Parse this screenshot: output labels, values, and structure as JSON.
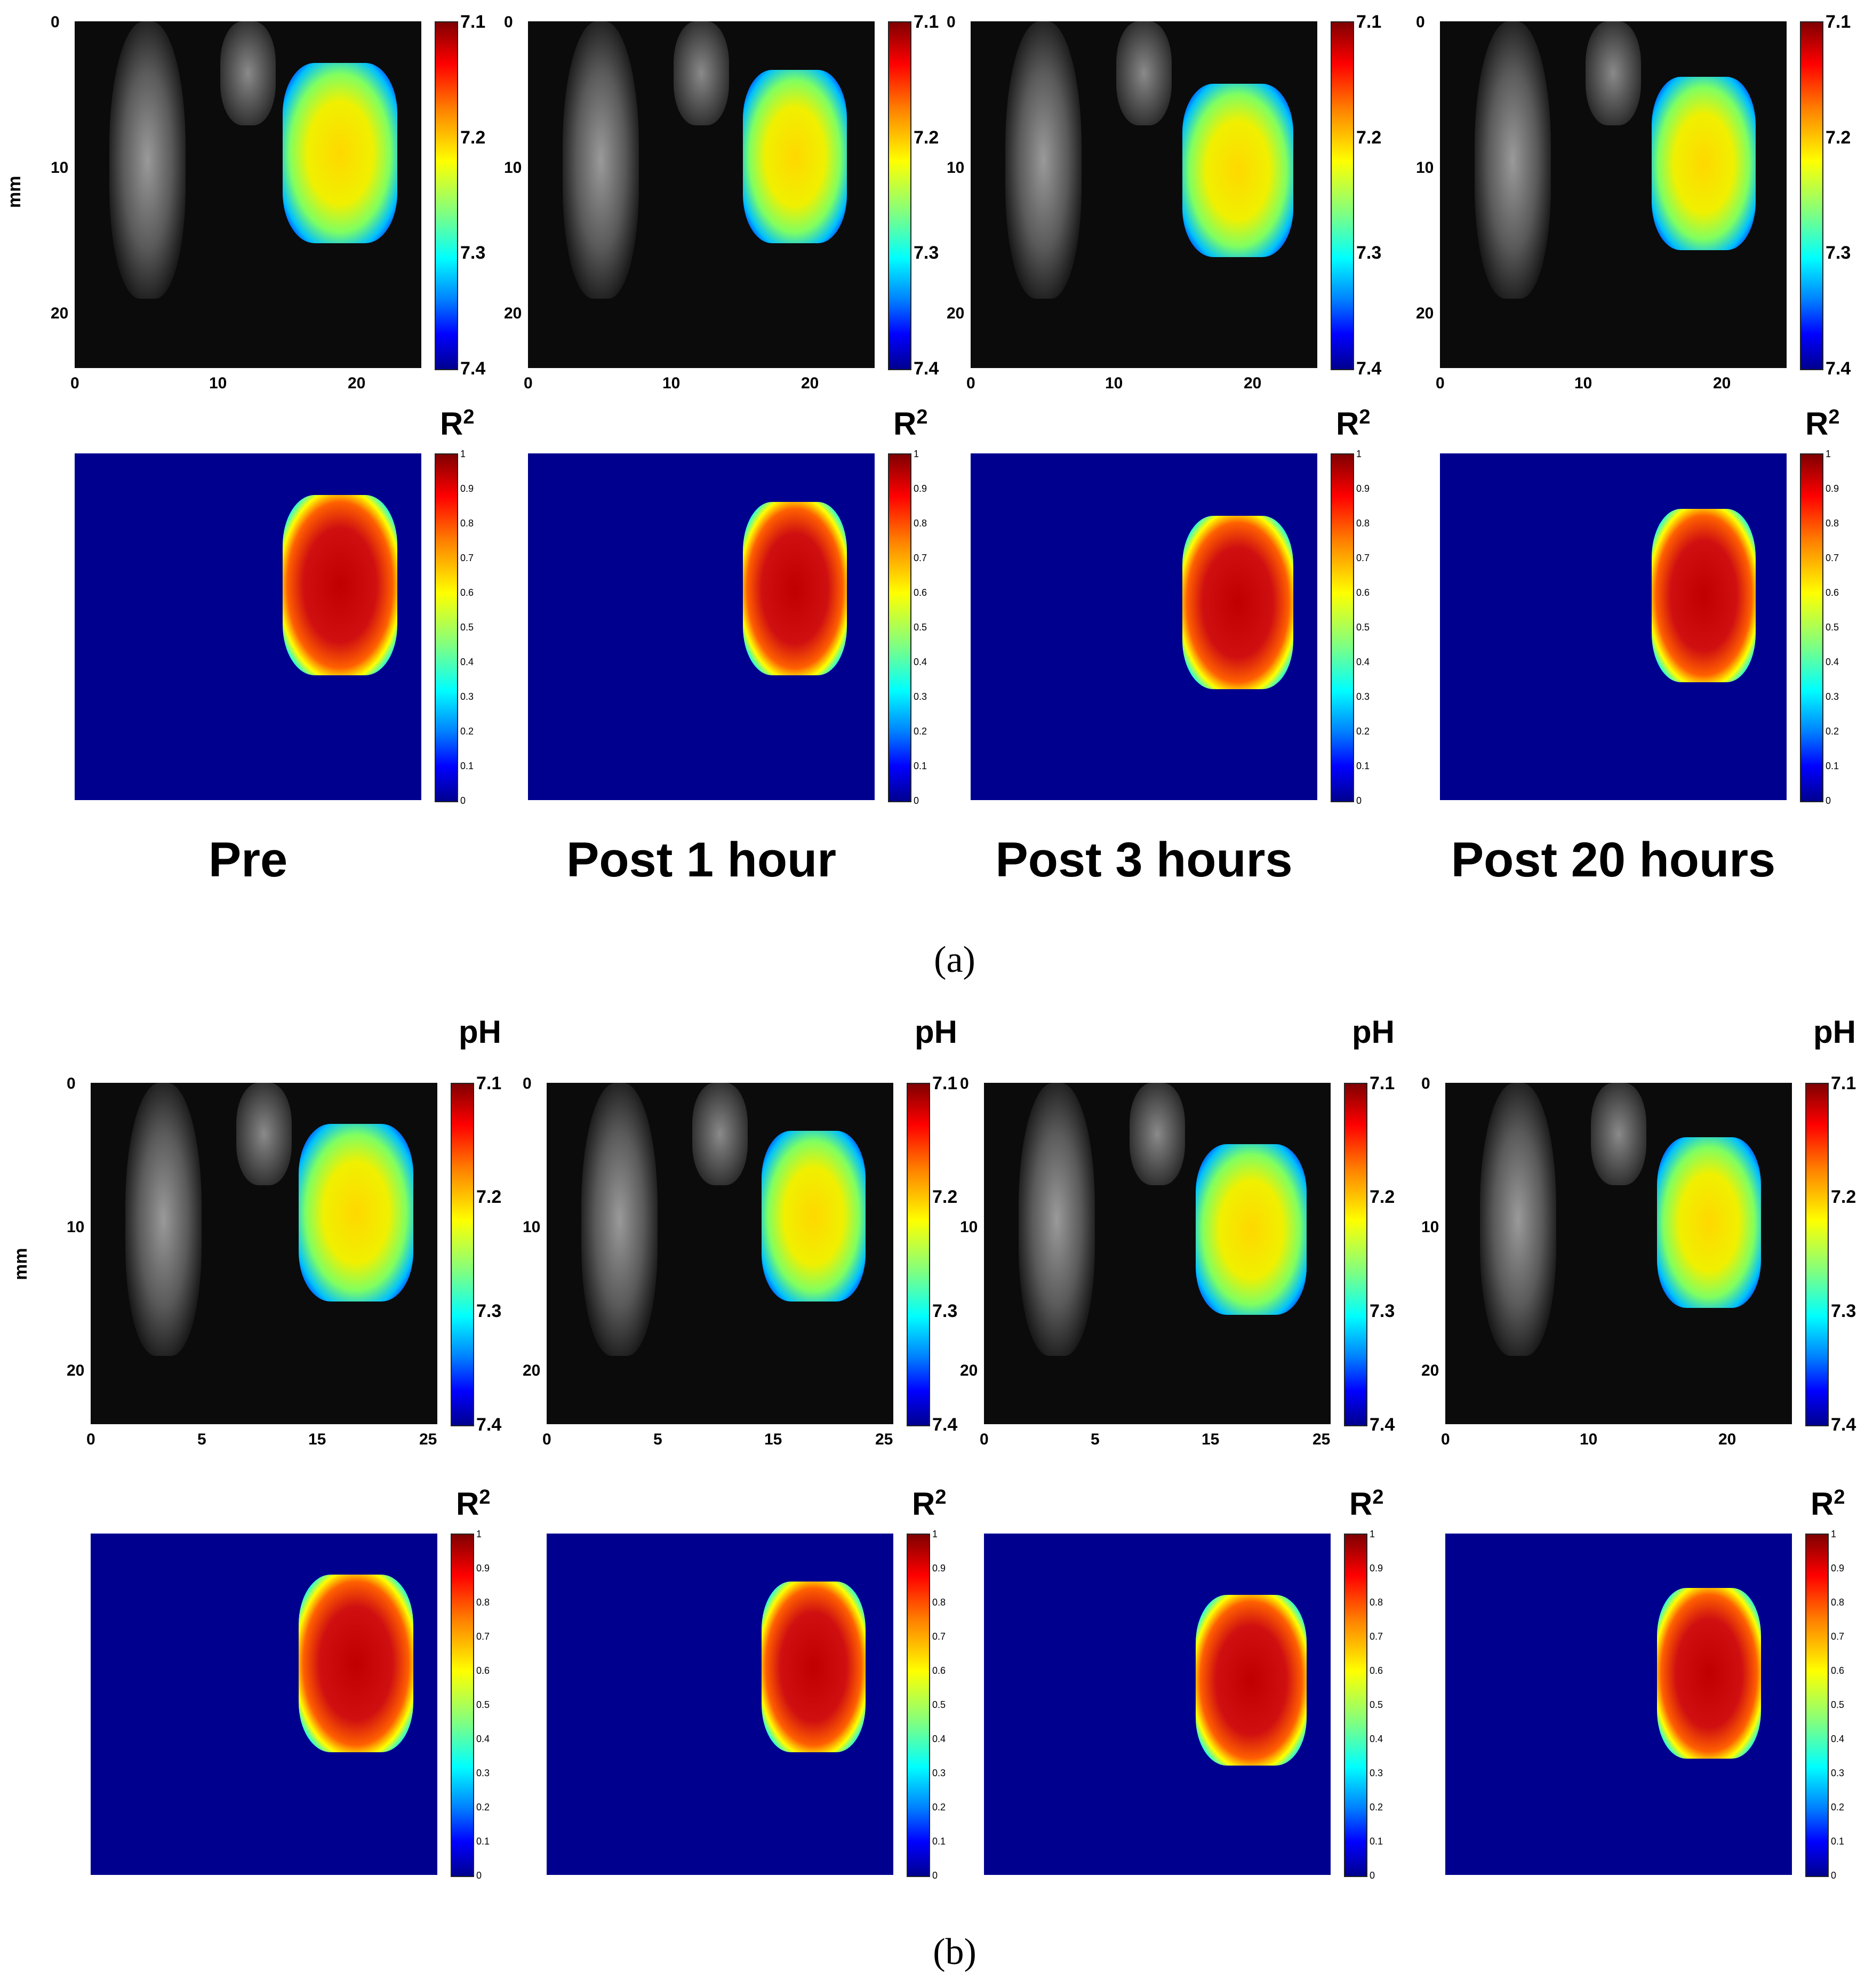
{
  "figure": {
    "panels": [
      {
        "id": "a",
        "caption": "(a)",
        "y_axis_label": "mm",
        "ph_label": "",
        "r2_label": "R",
        "r2_sup": "2",
        "ph_ticks": [
          "7.1",
          "7.2",
          "7.3",
          "7.4"
        ],
        "r2_ticks": [
          "1",
          "0.9",
          "0.8",
          "0.7",
          "0.6",
          "0.5",
          "0.4",
          "0.3",
          "0.2",
          "0.1",
          "0"
        ],
        "columns": [
          {
            "title": "Pre",
            "x_ticks": [
              "0",
              "10",
              "20"
            ],
            "y_ticks": [
              "0",
              "10",
              "20"
            ]
          },
          {
            "title": "Post 1 hour",
            "x_ticks": [
              "0",
              "10",
              "20"
            ],
            "y_ticks": [
              "0",
              "10",
              "20"
            ]
          },
          {
            "title": "Post 3 hours",
            "x_ticks": [
              "0",
              "10",
              "20"
            ],
            "y_ticks": [
              "0",
              "10",
              "20"
            ]
          },
          {
            "title": "Post 20 hours",
            "x_ticks": [
              "0",
              "10",
              "20"
            ],
            "y_ticks": [
              "0",
              "10",
              "20"
            ]
          }
        ]
      },
      {
        "id": "b",
        "caption": "(b)",
        "y_axis_label": "mm",
        "ph_label": "pH",
        "r2_label": "R",
        "r2_sup": "2",
        "ph_ticks": [
          "7.1",
          "7.2",
          "7.3",
          "7.4"
        ],
        "r2_ticks": [
          "1",
          "0.9",
          "0.8",
          "0.7",
          "0.6",
          "0.5",
          "0.4",
          "0.3",
          "0.2",
          "0.1",
          "0"
        ],
        "columns": [
          {
            "x_ticks": [
              "0",
              "5",
              "15",
              "25"
            ],
            "y_ticks": [
              "0",
              "10",
              "20"
            ]
          },
          {
            "x_ticks": [
              "0",
              "5",
              "15",
              "25"
            ],
            "y_ticks": [
              "0",
              "10",
              "20"
            ]
          },
          {
            "x_ticks": [
              "0",
              "5",
              "15",
              "25"
            ],
            "y_ticks": [
              "0",
              "10",
              "20"
            ]
          },
          {
            "x_ticks": [
              "0",
              "10",
              "20"
            ],
            "y_ticks": [
              "0",
              "10",
              "20"
            ]
          }
        ]
      }
    ]
  }
}
